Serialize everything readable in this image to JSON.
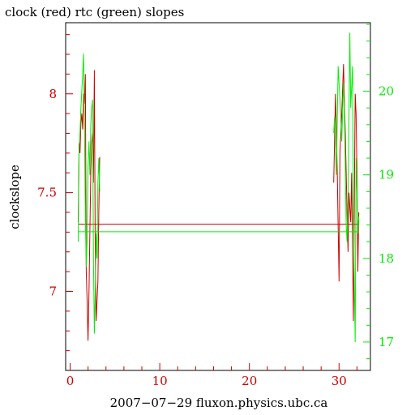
{
  "chart_data": {
    "type": "line",
    "title": "clock (red) rtc (green) slopes",
    "ylabel": "clockslope",
    "xlabel": "2007−07−29 fluxon.physics.ubc.ca",
    "xlim": [
      -0.5,
      33.5
    ],
    "ylim_left": [
      6.6,
      8.36
    ],
    "ylim_right": [
      16.66,
      20.82
    ],
    "x_ticks": [
      0,
      10,
      20,
      30
    ],
    "x_tick_labels": [
      "0",
      "10",
      "20",
      "30"
    ],
    "y_left_ticks": [
      7,
      7.5,
      8
    ],
    "y_left_tick_labels": [
      "7",
      "7.5",
      "8"
    ],
    "y_right_ticks": [
      17,
      18,
      19,
      20
    ],
    "y_right_tick_labels": [
      "17",
      "18",
      "19",
      "20"
    ],
    "colors": {
      "clock": "#cc0000",
      "rtc": "#00ee00",
      "axes": "#000000"
    },
    "grid": false,
    "series": [
      {
        "name": "clock",
        "axis": "left",
        "color": "#cc0000",
        "segments": [
          {
            "x": [
              0.9,
              1.0,
              1.1,
              1.2,
              1.3,
              1.4,
              1.5,
              1.6,
              1.7,
              1.8,
              1.9,
              2.0,
              2.1,
              2.2,
              2.3,
              2.4,
              2.5,
              2.6,
              2.7,
              2.8,
              2.9,
              3.0,
              3.1,
              3.2,
              3.3
            ],
            "y": [
              7.35,
              7.75,
              7.7,
              7.85,
              7.9,
              7.82,
              8.0,
              7.95,
              8.1,
              7.1,
              6.95,
              6.75,
              7.0,
              7.3,
              7.6,
              7.75,
              7.8,
              7.55,
              8.12,
              7.2,
              6.85,
              6.95,
              7.05,
              7.4,
              7.68
            ]
          },
          {
            "x": [
              29.4,
              29.6,
              29.8,
              30.0,
              30.1,
              30.3,
              30.5,
              30.7,
              30.9,
              31.0,
              31.1,
              31.3,
              31.4,
              31.6,
              31.8,
              31.9,
              32.0,
              32.1,
              32.2
            ],
            "y": [
              7.55,
              8.0,
              7.6,
              7.05,
              7.7,
              7.9,
              8.15,
              7.8,
              7.4,
              7.2,
              7.5,
              7.35,
              7.6,
              6.85,
              8.0,
              7.9,
              7.6,
              7.1,
              7.4
            ]
          }
        ],
        "fit_level": 7.34
      },
      {
        "name": "rtc",
        "axis": "right",
        "color": "#00ee00",
        "segments": [
          {
            "x": [
              0.9,
              1.0,
              1.1,
              1.2,
              1.3,
              1.4,
              1.5,
              1.6,
              1.7,
              1.8,
              1.9,
              2.0,
              2.1,
              2.2,
              2.3,
              2.4,
              2.5,
              2.6,
              2.7,
              2.8,
              2.9,
              3.0,
              3.1,
              3.2,
              3.3
            ],
            "y": [
              18.2,
              19.3,
              19.5,
              19.8,
              20.0,
              20.2,
              20.45,
              19.6,
              18.5,
              17.9,
              18.2,
              19.1,
              19.4,
              19.0,
              19.6,
              19.8,
              19.9,
              18.0,
              17.1,
              17.6,
              18.3,
              18.0,
              18.9,
              19.2,
              18.8
            ]
          },
          {
            "x": [
              29.4,
              29.5,
              29.7,
              29.9,
              30.1,
              30.3,
              30.5,
              30.6,
              30.8,
              30.9,
              31.0,
              31.2,
              31.3,
              31.5,
              31.6,
              31.8,
              31.9,
              32.0,
              32.1,
              32.2
            ],
            "y": [
              19.5,
              19.7,
              19.0,
              20.3,
              19.9,
              19.4,
              20.1,
              19.8,
              18.4,
              18.2,
              18.7,
              20.7,
              19.8,
              20.3,
              18.5,
              17.0,
              19.2,
              18.8,
              18.3,
              18.5
            ]
          }
        ],
        "fit_level": 18.32
      }
    ]
  }
}
